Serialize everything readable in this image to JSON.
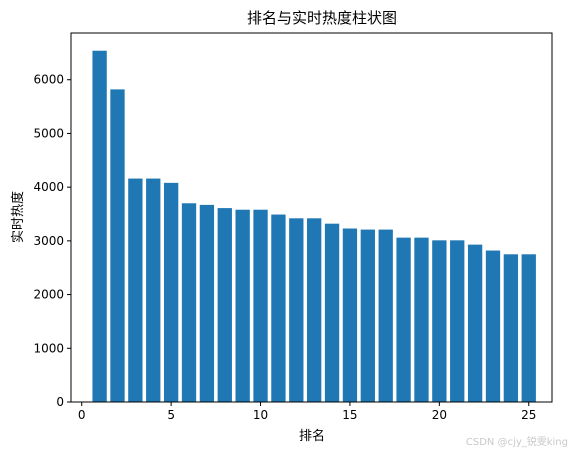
{
  "chart_data": {
    "type": "bar",
    "title": "排名与实时热度柱状图",
    "xlabel": "排名",
    "ylabel": "实时热度",
    "x": [
      1,
      2,
      3,
      4,
      5,
      6,
      7,
      8,
      9,
      10,
      11,
      12,
      13,
      14,
      15,
      16,
      17,
      18,
      19,
      20,
      21,
      22,
      23,
      24,
      25
    ],
    "values": [
      6540,
      5820,
      4160,
      4160,
      4080,
      3700,
      3670,
      3610,
      3580,
      3580,
      3490,
      3420,
      3420,
      3320,
      3230,
      3210,
      3210,
      3060,
      3060,
      3010,
      3010,
      2930,
      2820,
      2750,
      2750
    ],
    "xlim": [
      -0.6,
      26.3
    ],
    "ylim": [
      0,
      6870
    ],
    "xticks": [
      0,
      5,
      10,
      15,
      20,
      25
    ],
    "yticks": [
      0,
      1000,
      2000,
      3000,
      4000,
      5000,
      6000
    ],
    "bar_color": "#1f77b4",
    "grid": false,
    "legend": "none"
  },
  "watermark": "CSDN @cjy_锐雯king"
}
